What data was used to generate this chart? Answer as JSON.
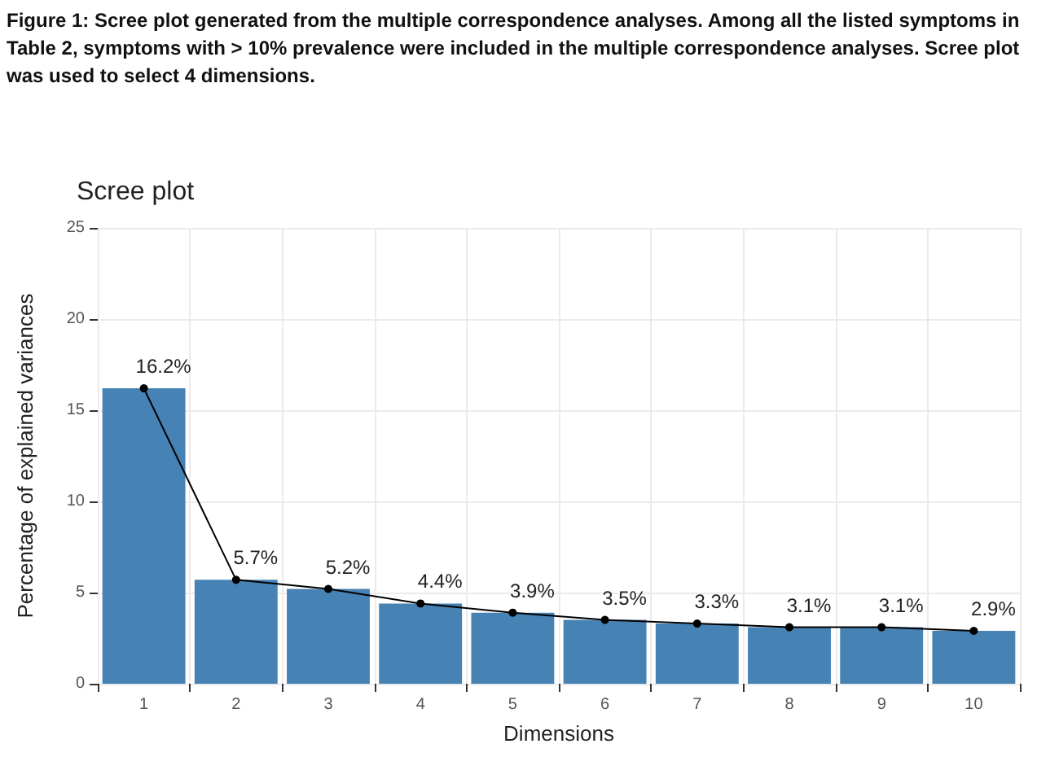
{
  "chart_data": {
    "type": "bar",
    "title": "Scree plot",
    "xlabel": "Dimensions",
    "ylabel": "Percentage of explained variances",
    "annotations": [
      "Figure 1: Scree plot generated from the multiple correspondence analyses. Among all the listed symptoms in Table 2, symptoms with > 10% prevalence were included in the multiple correspondence analyses. Scree plot was used to select 4 dimensions."
    ],
    "categories": [
      "1",
      "2",
      "3",
      "4",
      "5",
      "6",
      "7",
      "8",
      "9",
      "10"
    ],
    "series": [
      {
        "color": "#4682b4",
        "values": [
          16.2,
          5.7,
          5.2,
          4.4,
          3.9,
          3.5,
          3.3,
          3.1,
          3.1,
          2.9
        ]
      },
      {
        "type": "line",
        "color": "#000000",
        "marker": "circle",
        "values": [
          16.2,
          5.7,
          5.2,
          4.4,
          3.9,
          3.5,
          3.3,
          3.1,
          3.1,
          2.9
        ],
        "value_labels": [
          "16.2%",
          "5.7%",
          "5.2%",
          "4.4%",
          "3.9%",
          "3.5%",
          "3.3%",
          "3.1%",
          "3.1%",
          "2.9%"
        ]
      }
    ],
    "ylim": [
      0,
      25
    ],
    "yticks": [
      0,
      5,
      10,
      15,
      20,
      25
    ],
    "grid": true
  }
}
